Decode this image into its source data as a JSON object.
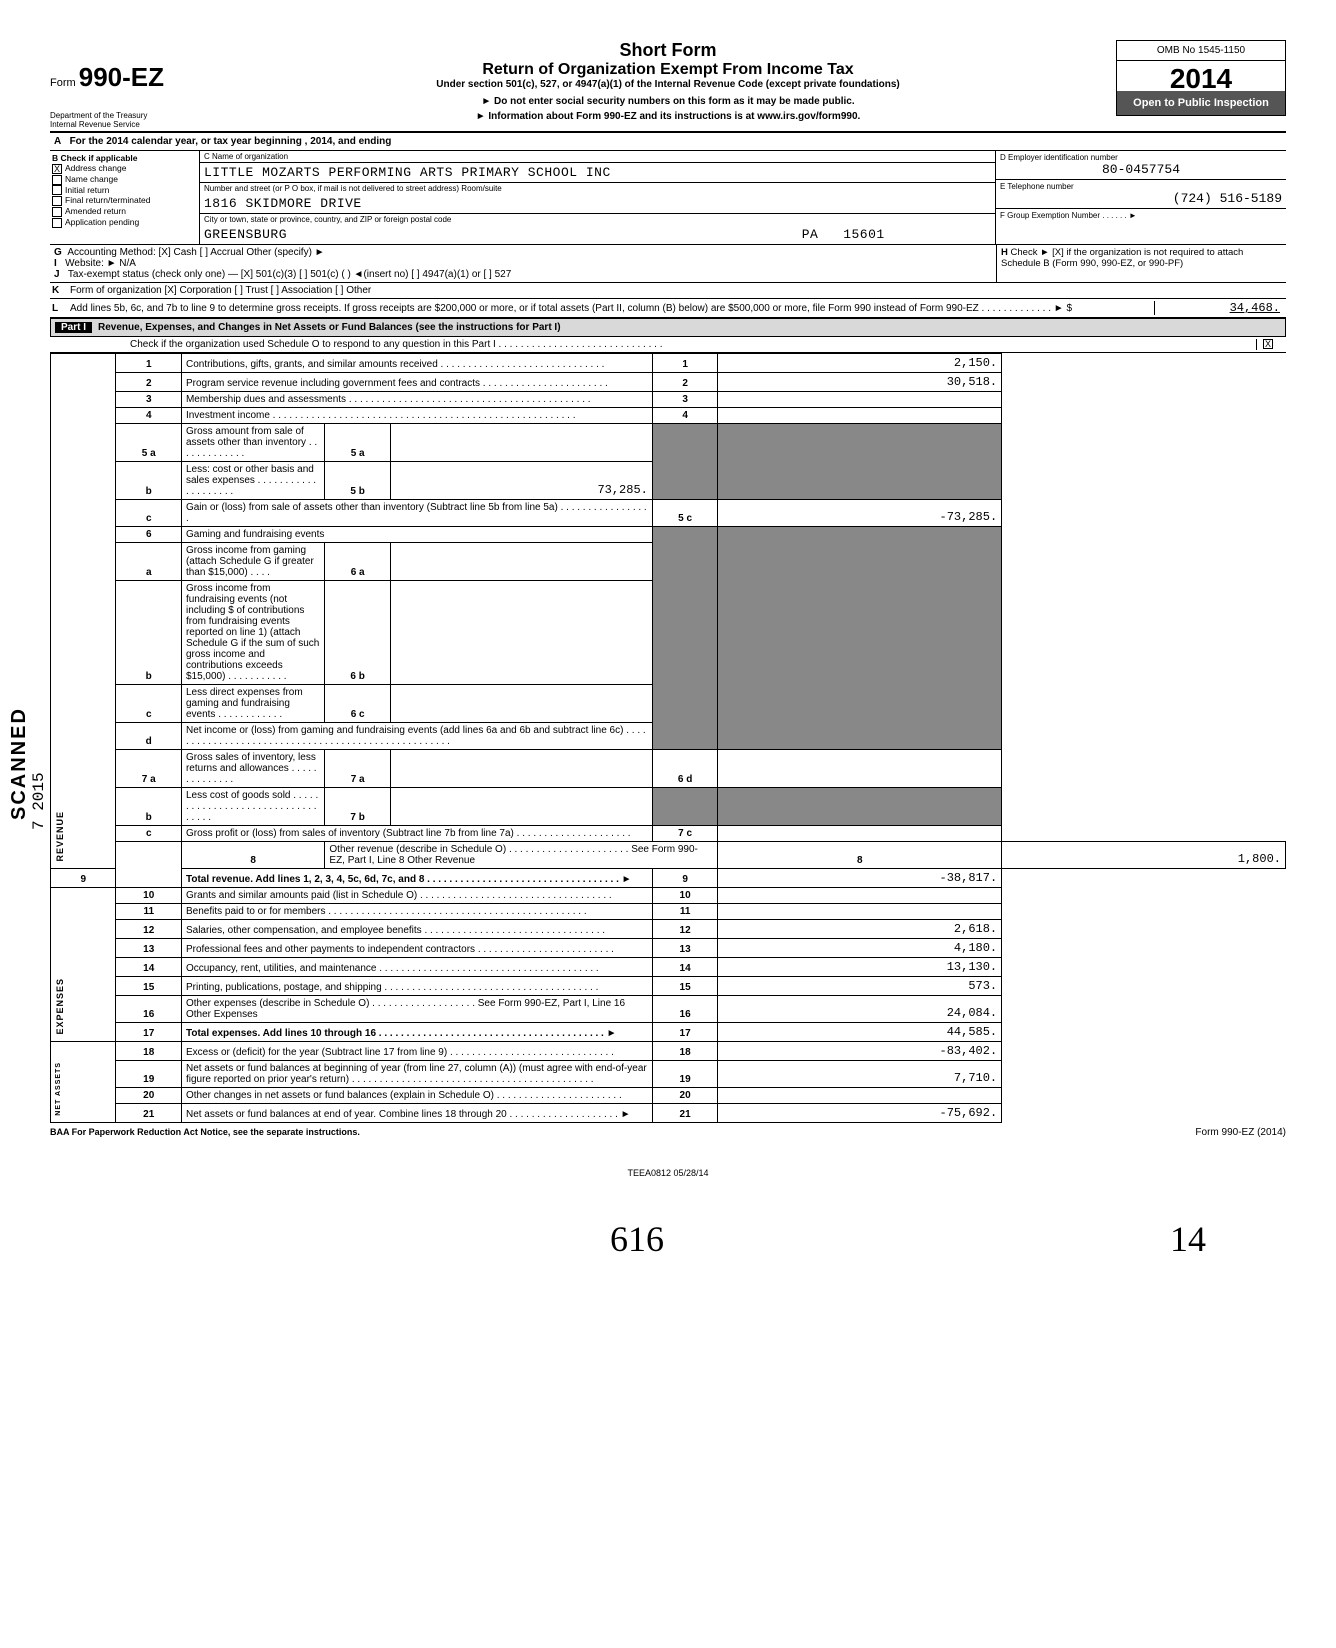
{
  "form": {
    "form_label": "Form",
    "form_number": "990-EZ",
    "dept": "Department of the Treasury\nInternal Revenue Service",
    "title1": "Short Form",
    "title2": "Return of Organization Exempt From Income Tax",
    "sub1": "Under section 501(c), 527, or 4947(a)(1) of the Internal Revenue Code (except private foundations)",
    "note1": "► Do not enter social security numbers on this form as it may be made public.",
    "note2": "► Information about Form 990-EZ and its instructions is at www.irs.gov/form990.",
    "omb": "OMB No 1545-1150",
    "year": "2014",
    "open_public": "Open to Public Inspection"
  },
  "rowA": "For the 2014 calendar year, or tax year beginning                                         , 2014, and ending",
  "B": {
    "header": "Check if applicable",
    "items": [
      {
        "label": "Address change",
        "checked": true
      },
      {
        "label": "Name change",
        "checked": false
      },
      {
        "label": "Initial return",
        "checked": false
      },
      {
        "label": "Final return/terminated",
        "checked": false
      },
      {
        "label": "Amended return",
        "checked": false
      },
      {
        "label": "Application pending",
        "checked": false
      }
    ]
  },
  "C": {
    "name_lab": "C  Name of organization",
    "name": "LITTLE MOZARTS PERFORMING ARTS PRIMARY SCHOOL INC",
    "addr_lab": "Number and street (or P O  box, if mail is not delivered to street address)                                              Room/suite",
    "addr": "1816 SKIDMORE DRIVE",
    "city_lab": "City or town, state or province, country, and ZIP or foreign postal code",
    "city": "GREENSBURG                                                              PA   15601"
  },
  "D": {
    "lab": "D   Employer identification number",
    "val": "80-0457754"
  },
  "E": {
    "lab": "E   Telephone number",
    "val": "(724) 516-5189"
  },
  "F": {
    "lab": "F   Group Exemption Number . . . . . .  ►",
    "val": ""
  },
  "G": "Accounting Method:    [X] Cash    [ ] Accrual    Other (specify) ►",
  "I": "Website: ►   N/A",
  "J": "Tax-exempt status (check only one) — [X] 501(c)(3)   [ ] 501(c) (      ) ◄(insert no)   [ ] 4947(a)(1) or   [ ] 527",
  "K": "Form of organization     [X] Corporation    [ ] Trust    [ ] Association    [ ] Other",
  "H": "Check ► [X] if the organization is not required to attach Schedule B (Form 990, 990-EZ, or 990-PF)",
  "L": {
    "text": "Add lines 5b, 6c, and 7b to line 9 to determine gross receipts. If gross receipts are $200,000 or more, or if total assets (Part II, column (B) below) are $500,000 or more, file Form 990 instead of Form 990-EZ . . . . . . . . . . . . . ► $",
    "amt": "34,468."
  },
  "partI": {
    "label": "Part I",
    "title": "Revenue, Expenses, and Changes in Net Assets or Fund Balances (see the instructions for Part I)",
    "check_o": "Check if the organization used Schedule O to respond to any question in this Part I . . . . . . . . . . . . . . . . . . . . . . . . . . . . . .",
    "check_o_checked": "X"
  },
  "side_labels": {
    "revenue": "REVENUE",
    "expenses": "EXPENSES",
    "netassets": "NET ASSETS"
  },
  "lines": {
    "1": {
      "n": "1",
      "d": "Contributions, gifts, grants, and similar amounts received . . . . . . . . . . . . . . . . . . . . . . . . . . . . . .",
      "a": "2,150."
    },
    "2": {
      "n": "2",
      "d": "Program service revenue including government fees and contracts . . . . . . . . . . . . . . . . . . . . . . .",
      "a": "30,518."
    },
    "3": {
      "n": "3",
      "d": "Membership dues and assessments . . . . . . . . . . . . . . . . . . . . . . . . . . . . . . . . . . . . . . . . . . . .",
      "a": ""
    },
    "4": {
      "n": "4",
      "d": "Investment income . . . . . . . . . . . . . . . . . . . . . . . . . . . . . . . . . . . . . . . . . . . . . . . . . . . . . . .",
      "a": ""
    },
    "5a": {
      "n": "5 a",
      "d": "Gross amount from sale of assets other than inventory . . . . . . . . . . . . .",
      "sn": "5 a",
      "sa": ""
    },
    "5b": {
      "n": "b",
      "d": "Less: cost or other basis and sales expenses . . . . . . . . . . . . . . . . . . . .",
      "sn": "5 b",
      "sa": "73,285."
    },
    "5c": {
      "n": "c",
      "d": "Gain or (loss) from sale of assets other than inventory (Subtract line 5b from line 5a) . . . . . . . . . . . . . . . . .",
      "rn": "5 c",
      "a": "-73,285."
    },
    "6": {
      "n": "6",
      "d": "Gaming and fundraising events"
    },
    "6a": {
      "n": "a",
      "d": "Gross income from gaming (attach Schedule G if greater than $15,000) . . . .",
      "sn": "6 a",
      "sa": ""
    },
    "6b": {
      "n": "b",
      "d": "Gross income from fundraising events (not including     $                                of contributions from fundraising events reported on line 1) (attach Schedule G if the sum of such gross income and contributions exceeds $15,000) . . . . . . . . . . .",
      "sn": "6 b",
      "sa": ""
    },
    "6c": {
      "n": "c",
      "d": "Less  direct expenses from gaming and fundraising events . . . . . . . . . . . .",
      "sn": "6 c",
      "sa": ""
    },
    "6d": {
      "n": "d",
      "d": "Net income or (loss) from gaming and fundraising events (add lines 6a and 6b and subtract line 6c) . . . . . . . . . . . . . . . . . . . . . . . . . . . . . . . . . . . . . . . . . . . . . . . . . . . .",
      "rn": "6 d",
      "a": ""
    },
    "7a": {
      "n": "7 a",
      "d": "Gross sales of inventory, less returns and allowances . . . . . . . . . . . . . .",
      "sn": "7 a",
      "sa": ""
    },
    "7b": {
      "n": "b",
      "d": "Less  cost of goods sold . . . . . . . . . . . . . . . . . . . . . . . . . . . . . . . . . .",
      "sn": "7 b",
      "sa": ""
    },
    "7c": {
      "n": "c",
      "d": "Gross profit or (loss) from sales of inventory (Subtract line 7b from line 7a) . . . . . . . . . . . . . . . . . . . . .",
      "rn": "7 c",
      "a": ""
    },
    "8": {
      "n": "8",
      "d": "Other revenue (describe in Schedule O) . . . . . . . . . . . . . . . . . . . . . . See Form 990-EZ, Part I, Line 8 Other Revenue",
      "a": "1,800."
    },
    "9": {
      "n": "9",
      "d": "Total revenue. Add lines 1, 2, 3, 4, 5c, 6d, 7c, and 8 . . . . . . . . . . . . . . . . . . . . . . . . . . . . . . . . . . . ►",
      "a": "-38,817."
    },
    "10": {
      "n": "10",
      "d": "Grants and similar amounts paid (list in Schedule O) . . . . . . . . . . . . . . . . . . . . . . . . . . . . . . . . . . .",
      "a": ""
    },
    "11": {
      "n": "11",
      "d": "Benefits paid to or for members . . . . . . . . . . . . . . . . . . . . . . . . . . . . . . . . . . . . . . . . . . . . . . .",
      "a": ""
    },
    "12": {
      "n": "12",
      "d": "Salaries, other compensation, and employee benefits . . . . . . . . . . . . . . . . . . . . . . . . . . . . . . . . .",
      "a": "2,618."
    },
    "13": {
      "n": "13",
      "d": "Professional fees and other payments to independent contractors . . . . . . . . . . . . . . . . . . . . . . . . .",
      "a": "4,180."
    },
    "14": {
      "n": "14",
      "d": "Occupancy, rent, utilities, and maintenance . . . . . . . . . . . . . . . . . . . . . . . . . . . . . . . . . . . . . . . .",
      "a": "13,130."
    },
    "15": {
      "n": "15",
      "d": "Printing, publications, postage, and shipping . . . . . . . . . . . . . . . . . . . . . . . . . . . . . . . . . . . . . . .",
      "a": "573."
    },
    "16": {
      "n": "16",
      "d": "Other expenses (describe in Schedule O) . . . . . . . . . . . . . . . . . . . See Form 990-EZ, Part I, Line 16 Other Expenses",
      "a": "24,084."
    },
    "17": {
      "n": "17",
      "d": "Total expenses. Add lines 10 through 16 . . . . . . . . . . . . . . . . . . . . . . . . . . . . . . . . . . . . . . . . . ►",
      "a": "44,585."
    },
    "18": {
      "n": "18",
      "d": "Excess or (deficit) for the year (Subtract line 17 from line 9) . . . . . . . . . . . . . . . . . . . . . . . . . . . . . .",
      "a": "-83,402."
    },
    "19": {
      "n": "19",
      "d": "Net assets or fund balances at beginning of year (from line 27, column (A)) (must agree with end-of-year figure reported on prior year's return) . . . . . . . . . . . . . . . . . . . . . . . . . . . . . . . . . . . . . . . . . . . .",
      "a": "7,710."
    },
    "20": {
      "n": "20",
      "d": "Other changes in net assets or fund balances (explain in Schedule O) . . . . . . . . . . . . . . . . . . . . . . .",
      "a": ""
    },
    "21": {
      "n": "21",
      "d": "Net assets or fund balances at end of year. Combine lines 18 through 20 . . . . . . . . . . . . . . . . . . . . ►",
      "a": "-75,692."
    }
  },
  "footer": {
    "left": "BAA  For Paperwork Reduction Act Notice, see the separate instructions.",
    "right": "Form 990-EZ (2014)",
    "teea": "TEEA0812   05/28/14"
  },
  "scanned": "SCANNED",
  "datevert": "7  2015",
  "sig_left": "616",
  "sig_right": "14",
  "colors": {
    "bg": "#ffffff",
    "text": "#000000",
    "shade": "#888888",
    "part_bg": "#d9d9d9",
    "open_bg": "#555555"
  }
}
